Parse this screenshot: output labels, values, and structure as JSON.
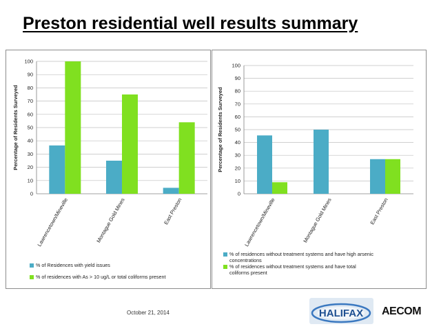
{
  "slide": {
    "title": "Preston residential well results summary",
    "footer_date": "October 21, 2014",
    "logos": {
      "halifax": "HALIFAX",
      "aecom": "AECOM"
    }
  },
  "colors": {
    "series1": "#4bacc6",
    "series2": "#80e020",
    "grid": "#bfbfbf",
    "axis": "#808080"
  },
  "chart_data": [
    {
      "type": "bar",
      "categories": [
        "Lawrencetown/Mineville",
        "Montague Gold Mines",
        "East Preston"
      ],
      "ylabel": "Percentage of Residents  Surveyed",
      "xlabel": "",
      "ylim": [
        0,
        100
      ],
      "yticks": [
        0,
        10,
        20,
        30,
        40,
        50,
        60,
        70,
        80,
        90,
        100
      ],
      "grid": true,
      "legend_position": "bottom",
      "series": [
        {
          "name": "% of Residences with yield issues",
          "values": [
            36.5,
            25,
            4.5
          ]
        },
        {
          "name": "% of residences with As > 10 ug/L or total coliforms present",
          "values": [
            100,
            75,
            54
          ]
        }
      ]
    },
    {
      "type": "bar",
      "categories": [
        "Lawrencetown/Mineville",
        "Montague Gold Mines",
        "East Preston"
      ],
      "ylabel": "Percentage of Residents Surveyed",
      "xlabel": "",
      "ylim": [
        0,
        100
      ],
      "yticks": [
        0,
        10,
        20,
        30,
        40,
        50,
        60,
        70,
        80,
        90,
        100
      ],
      "grid": true,
      "legend_position": "bottom",
      "series": [
        {
          "name": "% of residences without treatment systems and have high arsenic concentrations",
          "values": [
            45.5,
            50,
            27
          ]
        },
        {
          "name": "% of residences without treatment systems and have total coliforms present",
          "values": [
            9,
            0,
            27
          ]
        }
      ]
    }
  ]
}
